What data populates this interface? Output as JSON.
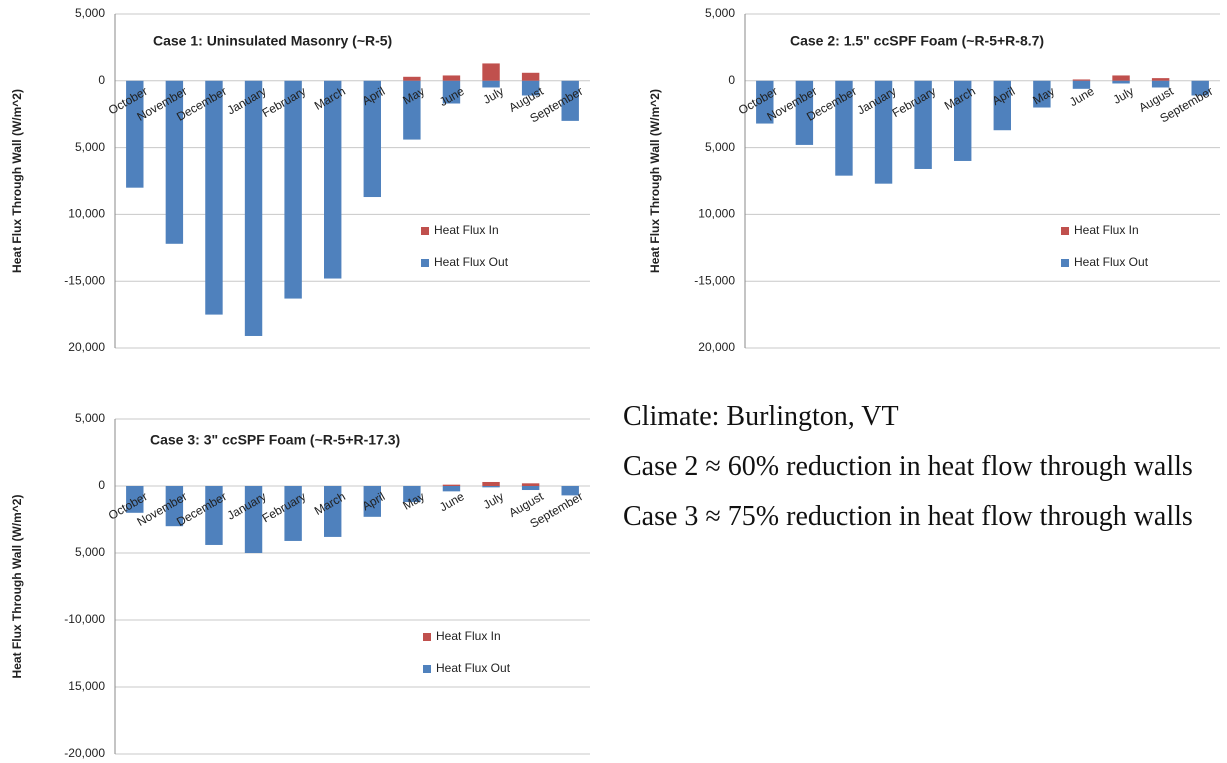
{
  "chart_data": [
    {
      "type": "bar",
      "stacked": true,
      "title": "Case 1: Uninsulated Masonry (~R-5)",
      "ylabel": "Heat Flux Through Wall (W/m^2)",
      "categories": [
        "October",
        "November",
        "December",
        "January",
        "February",
        "March",
        "April",
        "May",
        "June",
        "July",
        "August",
        "September"
      ],
      "series": [
        {
          "name": "Heat Flux In",
          "color": "#c0504d",
          "values": [
            0,
            0,
            0,
            0,
            0,
            0,
            0,
            300,
            400,
            1300,
            600,
            0
          ]
        },
        {
          "name": "Heat Flux Out",
          "color": "#4f81bd",
          "values": [
            -8000,
            -12200,
            -17500,
            -19100,
            -16300,
            -14800,
            -8700,
            -4400,
            -1700,
            -500,
            -1100,
            -3000
          ]
        }
      ],
      "ylim": [
        -20000,
        5000
      ],
      "yticks": [
        {
          "value": 5000,
          "label": "5,000"
        },
        0,
        {
          "value": -5000,
          "label": "5,000"
        },
        {
          "value": -10000,
          "label": "10,000"
        },
        {
          "value": -15000,
          "label": "-15,000"
        },
        {
          "value": -20000,
          "label": "20,000"
        }
      ],
      "grid": true,
      "legend": "right"
    },
    {
      "type": "bar",
      "stacked": true,
      "title": "Case 2: 1.5\" ccSPF Foam (~R-5+R-8.7)",
      "ylabel": "Heat Flux Through Wall (W/m^2)",
      "categories": [
        "October",
        "November",
        "December",
        "January",
        "February",
        "March",
        "April",
        "May",
        "June",
        "July",
        "August",
        "September"
      ],
      "series": [
        {
          "name": "Heat Flux In",
          "color": "#c0504d",
          "values": [
            0,
            0,
            0,
            0,
            0,
            0,
            0,
            0,
            100,
            400,
            200,
            0
          ]
        },
        {
          "name": "Heat Flux Out",
          "color": "#4f81bd",
          "values": [
            -3200,
            -4800,
            -7100,
            -7700,
            -6600,
            -6000,
            -3700,
            -2000,
            -600,
            -200,
            -500,
            -1100
          ]
        }
      ],
      "ylim": [
        -20000,
        5000
      ],
      "yticks": [
        {
          "value": 5000,
          "label": "5,000"
        },
        0,
        {
          "value": -5000,
          "label": "5,000"
        },
        {
          "value": -10000,
          "label": "10,000"
        },
        {
          "value": -15000,
          "label": "-15,000"
        },
        {
          "value": -20000,
          "label": "20,000"
        }
      ],
      "grid": true,
      "legend": "right"
    },
    {
      "type": "bar",
      "stacked": true,
      "title": "Case 3: 3\" ccSPF Foam (~R-5+R-17.3)",
      "ylabel": "Heat Flux Through Wall (W/m^2)",
      "categories": [
        "October",
        "November",
        "December",
        "January",
        "February",
        "March",
        "April",
        "May",
        "June",
        "July",
        "August",
        "September"
      ],
      "series": [
        {
          "name": "Heat Flux In",
          "color": "#c0504d",
          "values": [
            0,
            0,
            0,
            0,
            0,
            0,
            0,
            0,
            100,
            300,
            200,
            0
          ]
        },
        {
          "name": "Heat Flux Out",
          "color": "#4f81bd",
          "values": [
            -2000,
            -3000,
            -4400,
            -5000,
            -4100,
            -3800,
            -2300,
            -1200,
            -400,
            -100,
            -300,
            -700
          ]
        }
      ],
      "ylim": [
        -20000,
        5000
      ],
      "yticks": [
        {
          "value": 5000,
          "label": "5,000"
        },
        0,
        {
          "value": -5000,
          "label": "5,000"
        },
        {
          "value": -10000,
          "label": "-10,000"
        },
        {
          "value": -15000,
          "label": "15,000"
        },
        {
          "value": -20000,
          "label": "-20,000"
        }
      ],
      "grid": true,
      "legend": "right"
    }
  ],
  "notes": [
    "Climate: Burlington, VT",
    "Case 2 ≈ 60% reduction in heat flow through walls",
    "Case 3 ≈ 75% reduction in heat flow through walls"
  ]
}
